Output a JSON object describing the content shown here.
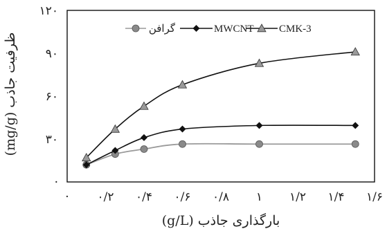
{
  "chart_data": {
    "type": "line",
    "title": "",
    "xlabel": "بارگذاری جاذب (g/L)",
    "ylabel": "ظرفیت جاذب (mg/g)",
    "xlim": [
      0,
      1.6
    ],
    "ylim": [
      0,
      120
    ],
    "x_ticks": [
      0,
      0.2,
      0.4,
      0.6,
      0.8,
      1.0,
      1.2,
      1.4,
      1.6
    ],
    "x_tick_labels": [
      "·",
      "۰/۲",
      "۰/۴",
      "۰/۶",
      "۰/۸",
      "۱",
      "۱/۲",
      "۱/۴",
      "۱/۶"
    ],
    "y_ticks": [
      0,
      30,
      60,
      90,
      120
    ],
    "y_tick_labels": [
      "·",
      "۳۰",
      "۶۰",
      "۹۰",
      "۱۲۰"
    ],
    "grid": false,
    "legend_position": "top",
    "x": [
      0.1,
      0.25,
      0.4,
      0.6,
      1.0,
      1.5
    ],
    "series": [
      {
        "name": "گرافن",
        "marker": "circle",
        "color": "#9a9a9a",
        "marker_color": "#8a8a8a",
        "values": [
          12,
          19.5,
          23,
          26.5,
          26.5,
          26.5
        ]
      },
      {
        "name": "MWCNT",
        "marker": "diamond",
        "color": "#111111",
        "marker_color": "#111111",
        "values": [
          12,
          22,
          31,
          37,
          39.5,
          39.5
        ]
      },
      {
        "name": "CMK-3",
        "marker": "triangle",
        "color": "#111111",
        "marker_color": "#9a9a9a",
        "values": [
          17,
          37,
          53,
          68,
          83,
          91
        ]
      }
    ]
  }
}
